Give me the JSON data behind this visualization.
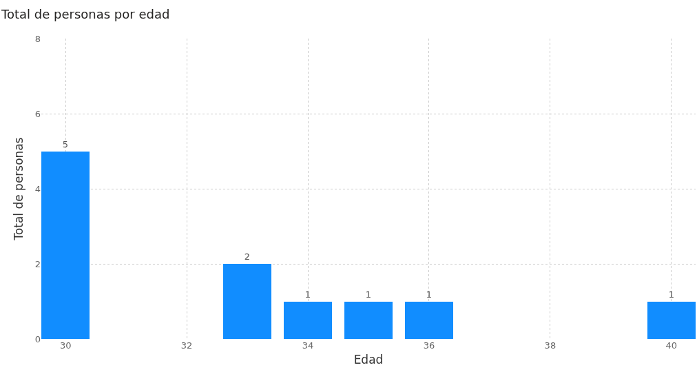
{
  "chart_data": {
    "type": "bar",
    "title": "Total de personas por edad",
    "xlabel": "Edad",
    "ylabel": "Total de personas",
    "x": [
      30,
      33,
      34,
      35,
      36,
      40
    ],
    "values": [
      5,
      2,
      1,
      1,
      1,
      1
    ],
    "color": "#118dff",
    "xlim": [
      29.6,
      40.4
    ],
    "xticks": [
      30,
      32,
      34,
      36,
      38,
      40
    ],
    "ylim": [
      0,
      8
    ],
    "yticks": [
      0,
      2,
      4,
      6,
      8
    ],
    "grid": true,
    "data_labels": true
  }
}
